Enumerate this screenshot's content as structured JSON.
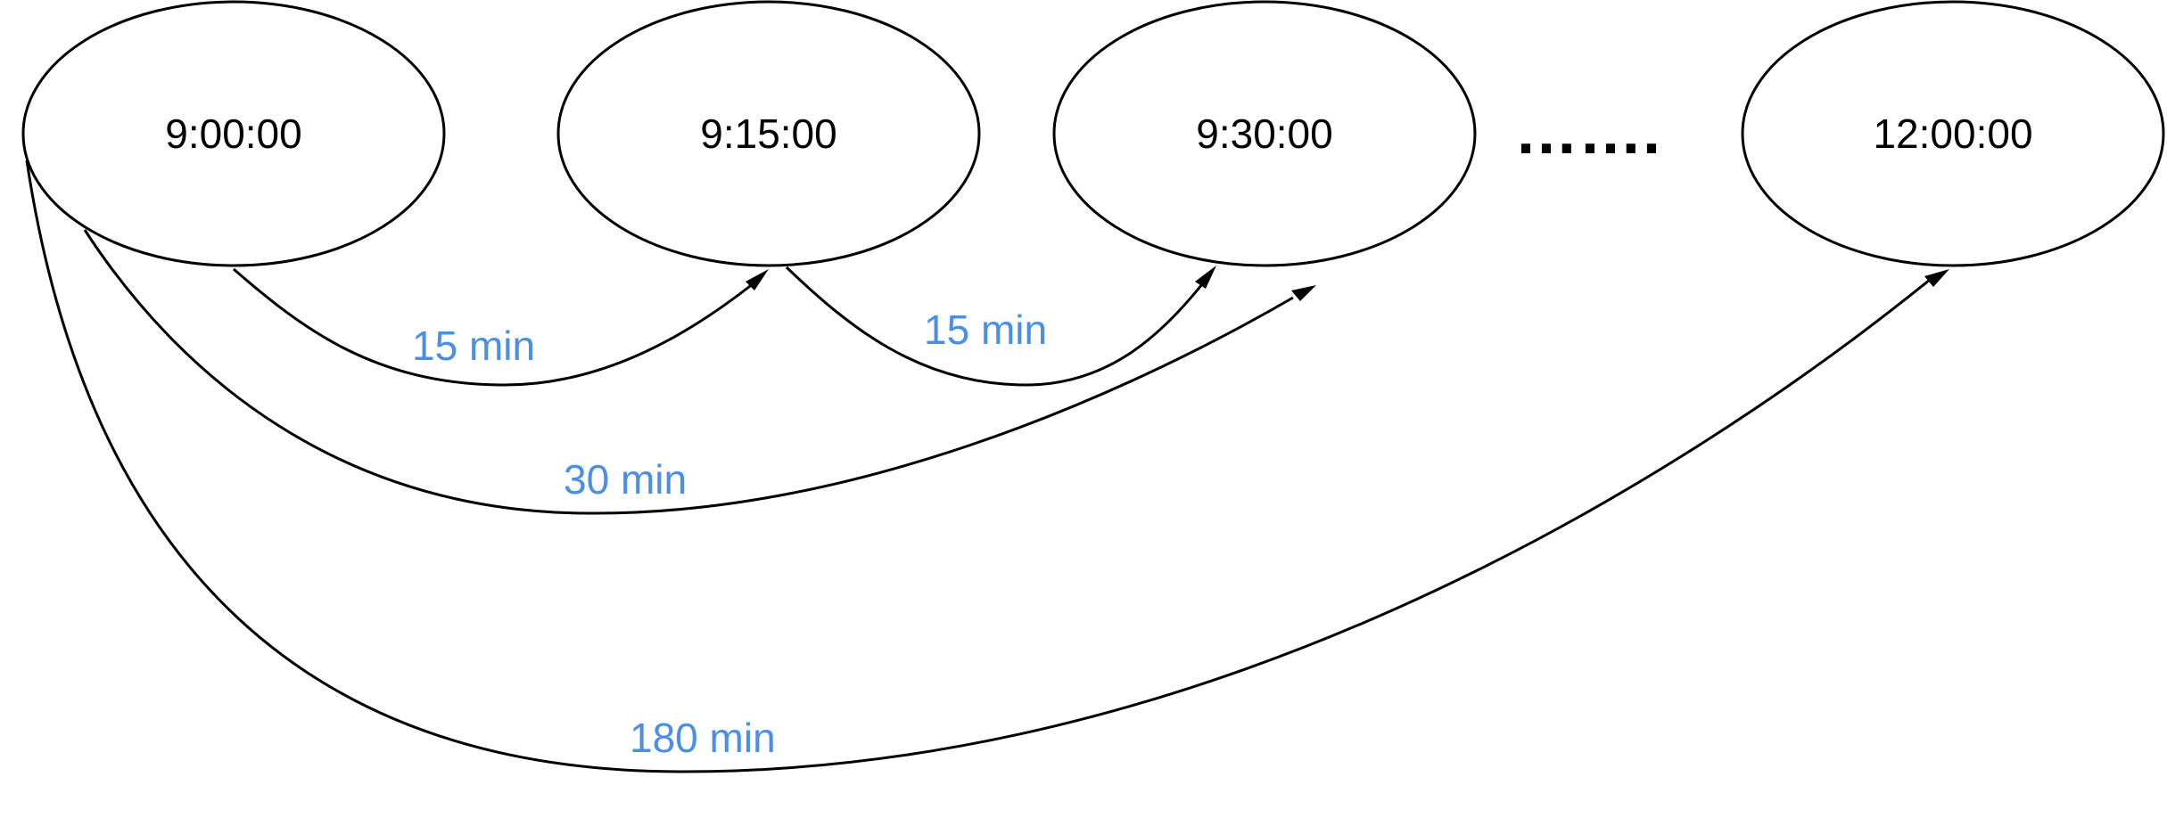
{
  "diagram": {
    "nodes": [
      {
        "id": "n0",
        "label": "9:00:00"
      },
      {
        "id": "n1",
        "label": "9:15:00"
      },
      {
        "id": "n2",
        "label": "9:30:00"
      },
      {
        "id": "n3",
        "label": "12:00:00"
      }
    ],
    "ellipsis": "…….",
    "edges": [
      {
        "from": "n0",
        "to": "n1",
        "label": "15 min"
      },
      {
        "from": "n1",
        "to": "n2",
        "label": "15 min"
      },
      {
        "from": "n0",
        "to": "n2",
        "label": "30 min"
      },
      {
        "from": "n0",
        "to": "n3",
        "label": "180 min"
      }
    ],
    "colors": {
      "label": "#4A8FE7",
      "stroke": "#000000"
    }
  }
}
